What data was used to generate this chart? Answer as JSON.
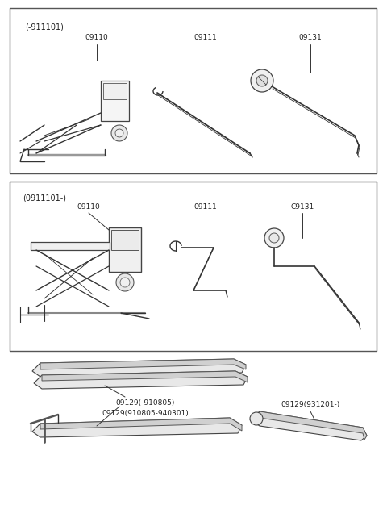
{
  "bg_color": "#ffffff",
  "border_color": "#444444",
  "text_color": "#222222",
  "title1": "(-911101)",
  "title2": "(0911101-)",
  "fontsize_label": 6.5,
  "fontsize_title": 6.5,
  "fig_w": 4.8,
  "fig_h": 6.57,
  "dpi": 100
}
